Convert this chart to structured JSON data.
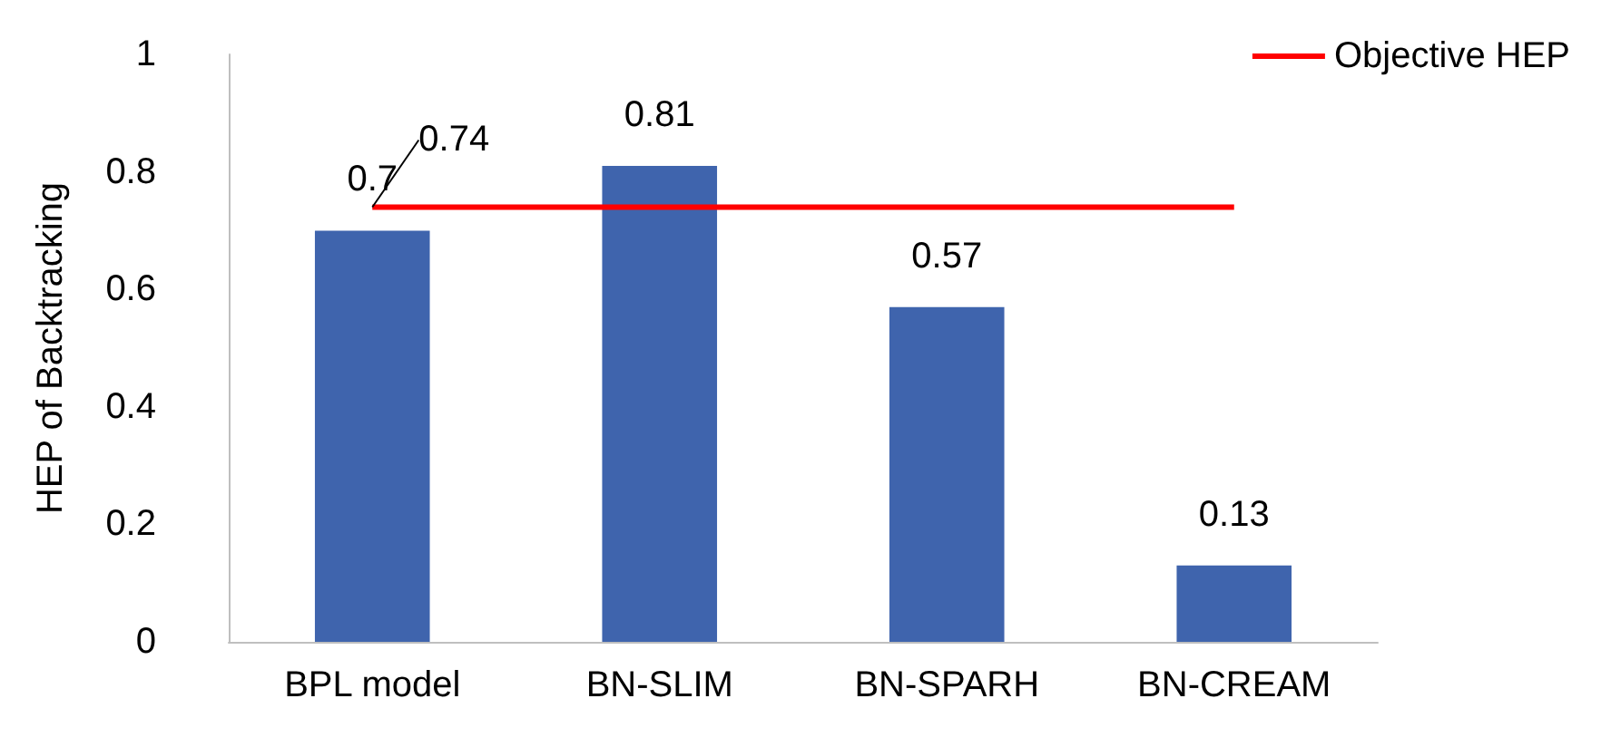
{
  "chart_data": {
    "type": "bar",
    "ylabel": "HEP of Backtracking",
    "categories": [
      "BPL model",
      "BN-SLIM",
      "BN-SPARH",
      "BN-CREAM"
    ],
    "series": [
      {
        "type": "bar",
        "color": "#3f64ad",
        "values": [
          0.7,
          0.81,
          0.57,
          0.13
        ],
        "value_labels": [
          "0.7",
          "0.81",
          "0.57",
          "0.13"
        ]
      },
      {
        "type": "line",
        "name": "Objective HEP",
        "color": "#ff0000",
        "values": [
          0.74,
          0.74,
          0.74,
          0.74
        ],
        "value_labels": [
          "0.74",
          null,
          null,
          null
        ]
      }
    ],
    "ylim": [
      0,
      1
    ],
    "yticks": [
      0,
      0.2,
      0.4,
      0.6,
      0.8,
      1
    ],
    "grid": false,
    "legend": "top right",
    "marker": "none",
    "line_style": "solid"
  }
}
